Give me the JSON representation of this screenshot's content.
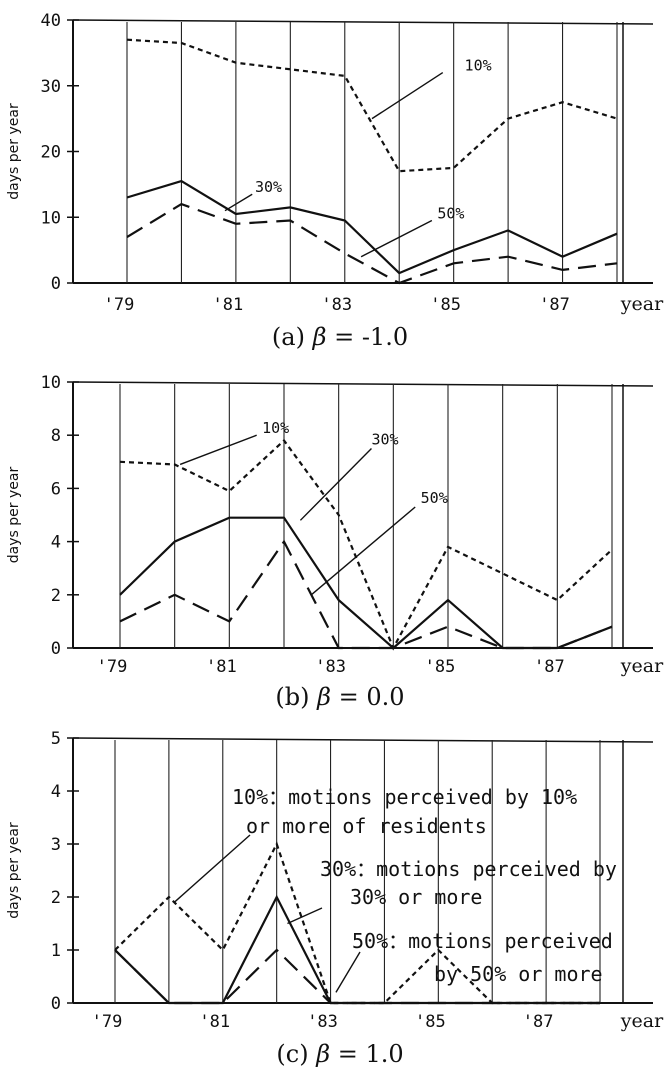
{
  "chart_data": [
    {
      "type": "line",
      "ylabel": "days per year",
      "xlabel": "year",
      "caption_prefix": "(a)",
      "caption_beta": "β",
      "caption_value": "= -1.0",
      "ylim": [
        0,
        40
      ],
      "yticks": [
        "0",
        "10",
        "20",
        "30",
        "40"
      ],
      "xlim": [
        1979,
        1988
      ],
      "xticks": [
        "'79",
        "'81",
        "'83",
        "'85",
        "'87"
      ],
      "x": [
        1979,
        1980,
        1981,
        1982,
        1983,
        1984,
        1985,
        1986,
        1987,
        1988
      ],
      "grid": "vertical",
      "series": [
        {
          "name": "10%",
          "style": "dotted",
          "values": [
            37,
            36.5,
            33.5,
            32.5,
            31.5,
            17,
            17.5,
            25,
            27.5,
            25
          ]
        },
        {
          "name": "30%",
          "style": "solid",
          "values": [
            13,
            15.5,
            10.5,
            11.5,
            9.5,
            1.5,
            5,
            8,
            4,
            7.5
          ]
        },
        {
          "name": "50%",
          "style": "dashed",
          "values": [
            7,
            12,
            9,
            9.5,
            4.5,
            0,
            3,
            4,
            2,
            3
          ]
        }
      ]
    },
    {
      "type": "line",
      "ylabel": "days per year",
      "xlabel": "year",
      "caption_prefix": "(b)",
      "caption_beta": "β",
      "caption_value": "= 0.0",
      "ylim": [
        0,
        10
      ],
      "yticks": [
        "0",
        "2",
        "4",
        "6",
        "8",
        "10"
      ],
      "xlim": [
        1979,
        1988
      ],
      "xticks": [
        "'79",
        "'81",
        "'83",
        "'85",
        "'87"
      ],
      "x": [
        1979,
        1980,
        1981,
        1982,
        1983,
        1984,
        1985,
        1986,
        1987,
        1988
      ],
      "grid": "vertical",
      "series": [
        {
          "name": "10%",
          "style": "dotted",
          "values": [
            7,
            6.9,
            5.9,
            7.8,
            5,
            0,
            3.8,
            2.8,
            1.8,
            3.7
          ]
        },
        {
          "name": "30%",
          "style": "solid",
          "values": [
            2,
            4,
            4.9,
            4.9,
            1.8,
            0,
            1.8,
            0,
            0,
            0.8
          ]
        },
        {
          "name": "50%",
          "style": "dashed",
          "values": [
            1,
            2,
            1,
            4,
            0,
            0,
            0.8,
            0,
            0,
            0.8
          ]
        }
      ]
    },
    {
      "type": "line",
      "ylabel": "days per year",
      "xlabel": "year",
      "caption_prefix": "(c)",
      "caption_beta": "β",
      "caption_value": "= 1.0",
      "ylim": [
        0,
        5
      ],
      "yticks": [
        "0",
        "1",
        "2",
        "3",
        "4",
        "5"
      ],
      "xlim": [
        1979,
        1988
      ],
      "xticks": [
        "'79",
        "'81",
        "'83",
        "'85",
        "'87"
      ],
      "x": [
        1979,
        1980,
        1981,
        1982,
        1983,
        1984,
        1985,
        1986,
        1987,
        1988
      ],
      "grid": "vertical",
      "series": [
        {
          "name": "10%",
          "style": "dotted",
          "values": [
            1,
            2,
            1,
            3,
            0,
            0,
            1,
            0,
            0,
            0
          ]
        },
        {
          "name": "30%",
          "style": "solid",
          "values": [
            1,
            0,
            0,
            2,
            0,
            0,
            0,
            0,
            0,
            0
          ]
        },
        {
          "name": "50%",
          "style": "dashed",
          "values": [
            1,
            0,
            0,
            1,
            0,
            0,
            0,
            0,
            0,
            0
          ]
        }
      ],
      "legend_lines": [
        "10%：motions perceived by 10%",
        "or more of residents",
        "30%：motions perceived by",
        "30% or more",
        "50%：motions perceived",
        "by 50% or more"
      ]
    }
  ]
}
